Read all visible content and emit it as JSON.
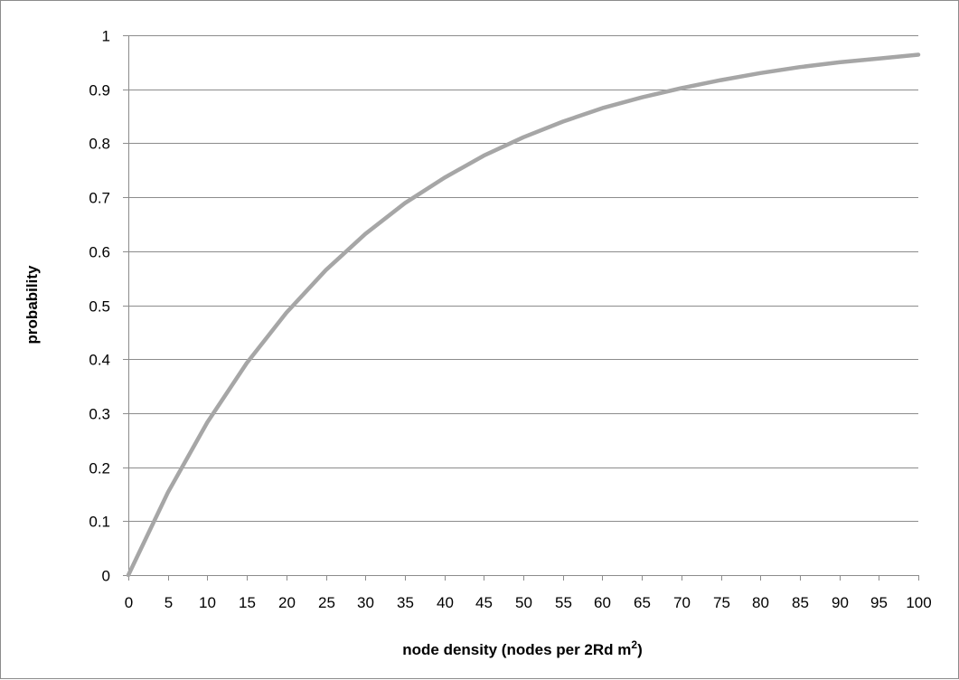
{
  "chart_data": {
    "type": "line",
    "title": "",
    "xlabel": "node density (nodes per 2Rd m",
    "xlabel_superscript": "2",
    "xlabel_suffix": ")",
    "ylabel": "probability",
    "xlim": [
      0,
      100
    ],
    "ylim": [
      0,
      1
    ],
    "x_ticks": [
      0,
      5,
      10,
      15,
      20,
      25,
      30,
      35,
      40,
      45,
      50,
      55,
      60,
      65,
      70,
      75,
      80,
      85,
      90,
      95,
      100
    ],
    "y_ticks": [
      0,
      0.1,
      0.2,
      0.3,
      0.4,
      0.5,
      0.6,
      0.7,
      0.8,
      0.9,
      1
    ],
    "x_tick_labels": [
      "0",
      "5",
      "10",
      "15",
      "20",
      "25",
      "30",
      "35",
      "40",
      "45",
      "50",
      "55",
      "60",
      "65",
      "70",
      "75",
      "80",
      "85",
      "90",
      "95",
      "100"
    ],
    "y_tick_labels": [
      "0",
      "0.1",
      "0.2",
      "0.3",
      "0.4",
      "0.5",
      "0.6",
      "0.7",
      "0.8",
      "0.9",
      "1"
    ],
    "grid": "horizontal",
    "legend": "none",
    "series": [
      {
        "color": "#a6a6a6",
        "x": [
          0,
          5,
          10,
          15,
          20,
          25,
          30,
          35,
          40,
          45,
          50,
          55,
          60,
          65,
          70,
          75,
          80,
          85,
          90,
          95,
          100
        ],
        "y": [
          0,
          0.153,
          0.283,
          0.393,
          0.486,
          0.565,
          0.632,
          0.689,
          0.736,
          0.777,
          0.811,
          0.84,
          0.865,
          0.885,
          0.902,
          0.917,
          0.93,
          0.941,
          0.95,
          0.957,
          0.964
        ]
      }
    ]
  }
}
